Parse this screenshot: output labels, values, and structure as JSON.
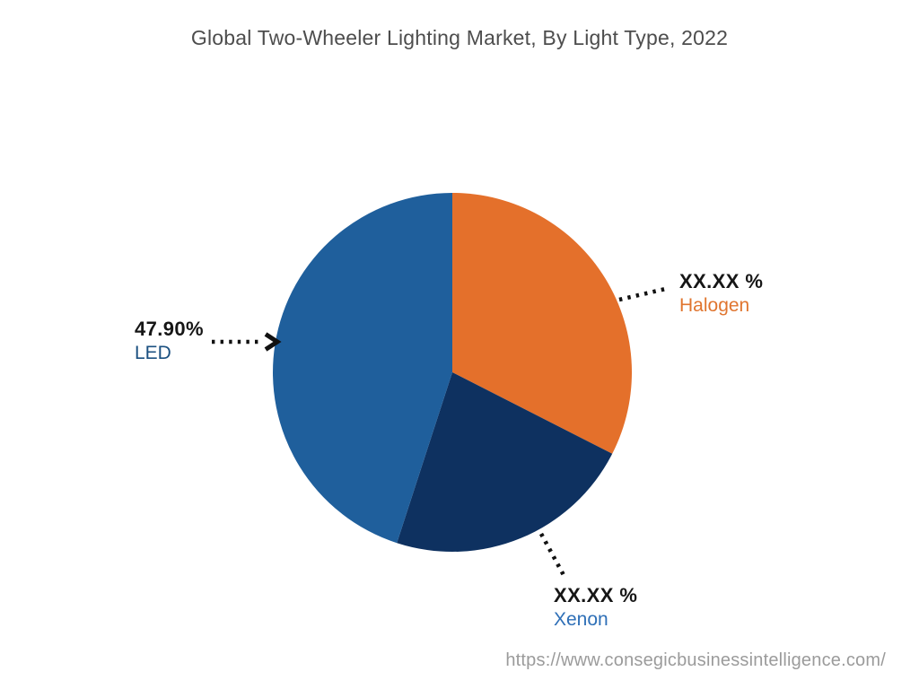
{
  "footer": {
    "url": "https://www.consegicbusinessintelligence.com/"
  },
  "chart_data": {
    "type": "pie",
    "title": "Global Two-Wheeler Lighting Market, By Light Type, 2022",
    "start_angle_deg": 0,
    "direction": "clockwise",
    "legend_position": "callouts",
    "slices": [
      {
        "label": "Halogen",
        "display_value": "XX.XX %",
        "share_pct_est": 32.5,
        "color": "#E4702B",
        "label_color": "#E0752F"
      },
      {
        "label": "Xenon",
        "display_value": "XX.XX %",
        "share_pct_est": 22.5,
        "color": "#0E3160",
        "label_color": "#2E6FB7"
      },
      {
        "label": "LED",
        "display_value": "47.90%",
        "share_pct_est": 45.0,
        "color": "#1F5F9C",
        "label_color": "#1B5080"
      }
    ]
  }
}
